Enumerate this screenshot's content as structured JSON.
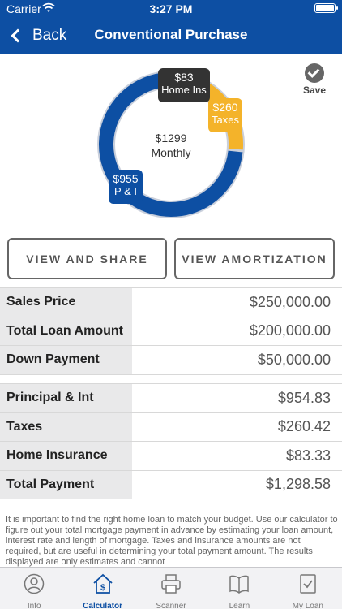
{
  "status": {
    "carrier": "Carrier",
    "time": "3:27 PM"
  },
  "nav": {
    "back_label": "Back",
    "title": "Conventional Purchase"
  },
  "summary": {
    "total_amount": "$1299",
    "total_label": "Monthly",
    "segments": [
      {
        "name": "P & I",
        "amount": "$955",
        "color": "#0d4fa3"
      },
      {
        "name": "Taxes",
        "amount": "$260",
        "color": "#f4b32a"
      },
      {
        "name": "Home Ins",
        "amount": "$83",
        "color": "#333333"
      }
    ]
  },
  "save_label": "Save",
  "buttons": {
    "share": "VIEW AND SHARE",
    "amortization": "VIEW AMORTIZATION"
  },
  "loan_rows": [
    {
      "label": "Sales Price",
      "value": "$250,000.00"
    },
    {
      "label": "Total Loan Amount",
      "value": "$200,000.00"
    },
    {
      "label": "Down Payment",
      "value": "$50,000.00"
    }
  ],
  "payment_rows": [
    {
      "label": "Principal & Int",
      "value": "$954.83"
    },
    {
      "label": "Taxes",
      "value": "$260.42"
    },
    {
      "label": "Home Insurance",
      "value": "$83.33"
    },
    {
      "label": "Total Payment",
      "value": "$1,298.58"
    }
  ],
  "disclaimer": "It is important to find the right home loan to match your budget. Use our calculator to figure out your total mortgage payment in advance by estimating your loan amount, interest rate and length of mortgage. Taxes and insurance amounts are not required, but are useful in determining your total payment amount.  The results displayed are only estimates and cannot",
  "tabs": [
    {
      "label": "Info",
      "icon": "person-icon"
    },
    {
      "label": "Calculator",
      "icon": "calculator-house-icon",
      "active": true
    },
    {
      "label": "Scanner",
      "icon": "printer-icon"
    },
    {
      "label": "Learn",
      "icon": "book-icon"
    },
    {
      "label": "My Loan",
      "icon": "checklist-icon"
    }
  ],
  "colors": {
    "brand": "#0d4fa3",
    "accent": "#f4b32a",
    "dark": "#333333"
  }
}
